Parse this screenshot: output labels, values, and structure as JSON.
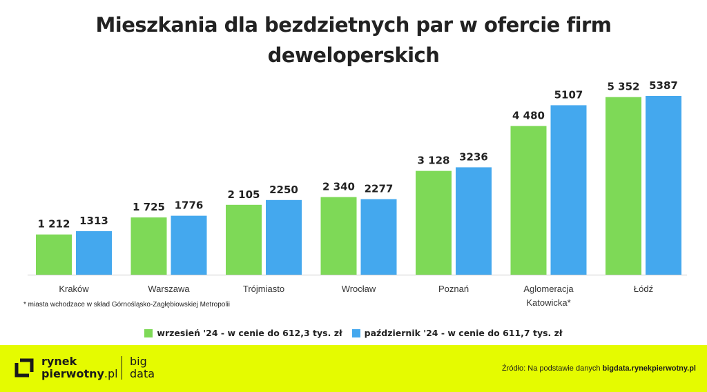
{
  "chart_data": {
    "type": "bar",
    "title_line1": "Mieszkania dla bezdzietnych par w ofercie firm",
    "title_line2": "deweloperskich",
    "categories": [
      "Kraków",
      "Warszawa",
      "Trójmiasto",
      "Wrocław",
      "Poznań",
      "Aglomeracja Katowicka*",
      "Łódź"
    ],
    "category_lines": [
      [
        "Kraków"
      ],
      [
        "Warszawa"
      ],
      [
        "Trójmiasto"
      ],
      [
        "Wrocław"
      ],
      [
        "Poznań"
      ],
      [
        "Aglomeracja",
        "Katowicka*"
      ],
      [
        "Łódź"
      ]
    ],
    "series": [
      {
        "name": "wrzesień '24 - w cenie do 612,3 tys. zł",
        "color": "#7ed957",
        "values": [
          1212,
          1725,
          2105,
          2340,
          3128,
          4480,
          5352
        ],
        "labels": [
          "1 212",
          "1 725",
          "2 105",
          "2 340",
          "3 128",
          "4 480",
          "5 352"
        ]
      },
      {
        "name": "październik '24 - w cenie do 611,7 tys. zł",
        "color": "#44a8ee",
        "values": [
          1313,
          1776,
          2250,
          2277,
          3236,
          5107,
          5387
        ],
        "labels": [
          "1313",
          "1776",
          "2250",
          "2277",
          "3236",
          "5107",
          "5387"
        ]
      }
    ],
    "ylim": [
      0,
      5387
    ],
    "grid": false,
    "legend_position": "bottom"
  },
  "footnote": "* miasta wchodzace w skład Górnośląsko-Zagłębiowskiej Metropolii",
  "brand": {
    "line1": "rynek",
    "line2": "pierwotny",
    "line2_suffix": ".pl",
    "big_line1": "big",
    "big_line2": "data",
    "accent_color": "#e5fb00"
  },
  "source": {
    "prefix": "Źródło: Na podstawie danych",
    "link": "bigdata.rynekpierwotny.pl"
  }
}
